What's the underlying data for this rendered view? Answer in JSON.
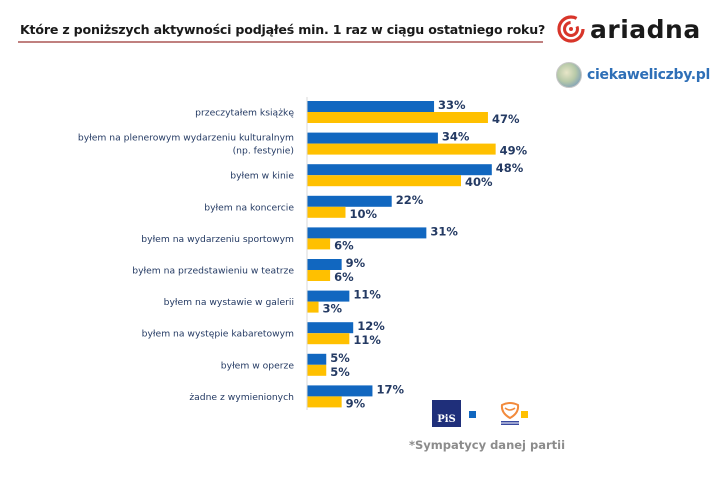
{
  "header": {
    "title": "Które z poniższych aktywności podjąłeś min. 1 raz w ciągu ostatniego roku?",
    "logo_ariadna": "ariadna",
    "logo_ciekawe": "ciekaweliczby.pl"
  },
  "legend": {
    "party1_logo": "PiS",
    "party2_logo": "Platforma Obywatelska",
    "footnote": "*Sympatycy danej partii"
  },
  "colors": {
    "series1": "#1167c0",
    "series2": "#ffc000",
    "title_rule": "#c0807f",
    "ariadna_red": "#d8352a"
  },
  "chart_data": {
    "type": "bar",
    "orientation": "horizontal",
    "title": "Które z poniższych aktywności podjąłeś min. 1 raz w ciągu ostatniego roku?",
    "xlabel": "",
    "ylabel": "",
    "xlim": [
      0,
      50
    ],
    "grid": false,
    "legend_position": "bottom-right",
    "categories": [
      [
        "przeczytałem książkę"
      ],
      [
        "byłem na plenerowym wydarzeniu kulturalnym",
        "(np. festynie)"
      ],
      [
        "byłem w kinie"
      ],
      [
        "byłem na koncercie"
      ],
      [
        "byłem na wydarzeniu sportowym"
      ],
      [
        "byłem na przedstawieniu w teatrze"
      ],
      [
        "byłem na wystawie w galerii"
      ],
      [
        "byłem na występie kabaretowym"
      ],
      [
        "byłem w operze"
      ],
      [
        "żadne z wymienionych"
      ]
    ],
    "series": [
      {
        "name": "PiS",
        "color": "#1167c0",
        "values": [
          33,
          34,
          48,
          22,
          31,
          9,
          11,
          12,
          5,
          17
        ],
        "labels": [
          "33%",
          "34%",
          "48%",
          "22%",
          "31%",
          "9%",
          "11%",
          "12%",
          "5%",
          "17%"
        ]
      },
      {
        "name": "Platforma Obywatelska",
        "color": "#ffc000",
        "values": [
          47,
          49,
          40,
          10,
          6,
          6,
          3,
          11,
          5,
          9
        ],
        "labels": [
          "47%",
          "49%",
          "40%",
          "10%",
          "6%",
          "6%",
          "3%",
          "11%",
          "5%",
          "9%"
        ]
      }
    ]
  }
}
